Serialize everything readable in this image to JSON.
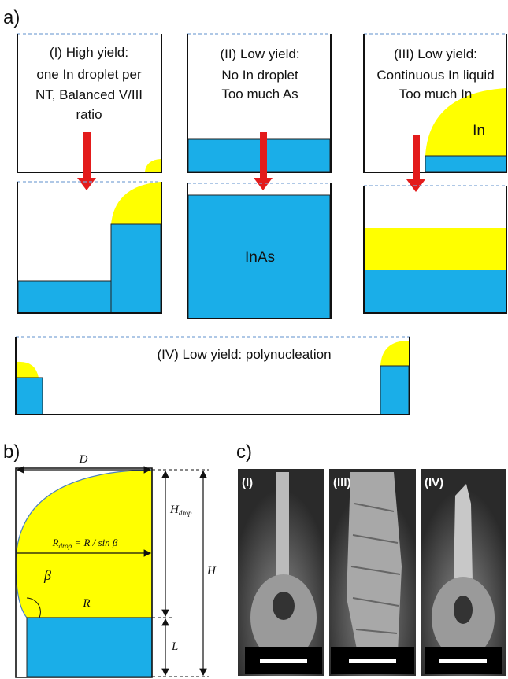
{
  "panel_a": {
    "label": "a)",
    "case_1": {
      "lines": [
        "(I) High yield:",
        "one In droplet per",
        "NT, Balanced V/III",
        "ratio"
      ]
    },
    "case_2": {
      "lines": [
        "(II) Low yield:",
        "No In droplet",
        "Too much As"
      ],
      "material": "InAs"
    },
    "case_3": {
      "lines": [
        "(III) Low yield:",
        "Continuous In liquid",
        "Too much In"
      ],
      "material": "In"
    },
    "case_4": {
      "text": "(IV) Low yield:  polynucleation"
    }
  },
  "panel_b": {
    "label": "b)",
    "diameter": "D",
    "height": "H",
    "height_drop": {
      "main": "H",
      "sub": "drop"
    },
    "radius": "R",
    "length": "L",
    "angle": "β",
    "drop_radius": {
      "main": "R",
      "sub": "drop",
      "rest": " = R / sin β"
    }
  },
  "panel_c": {
    "label": "c)",
    "images": [
      "(I)",
      "(III)",
      "(IV)"
    ]
  }
}
